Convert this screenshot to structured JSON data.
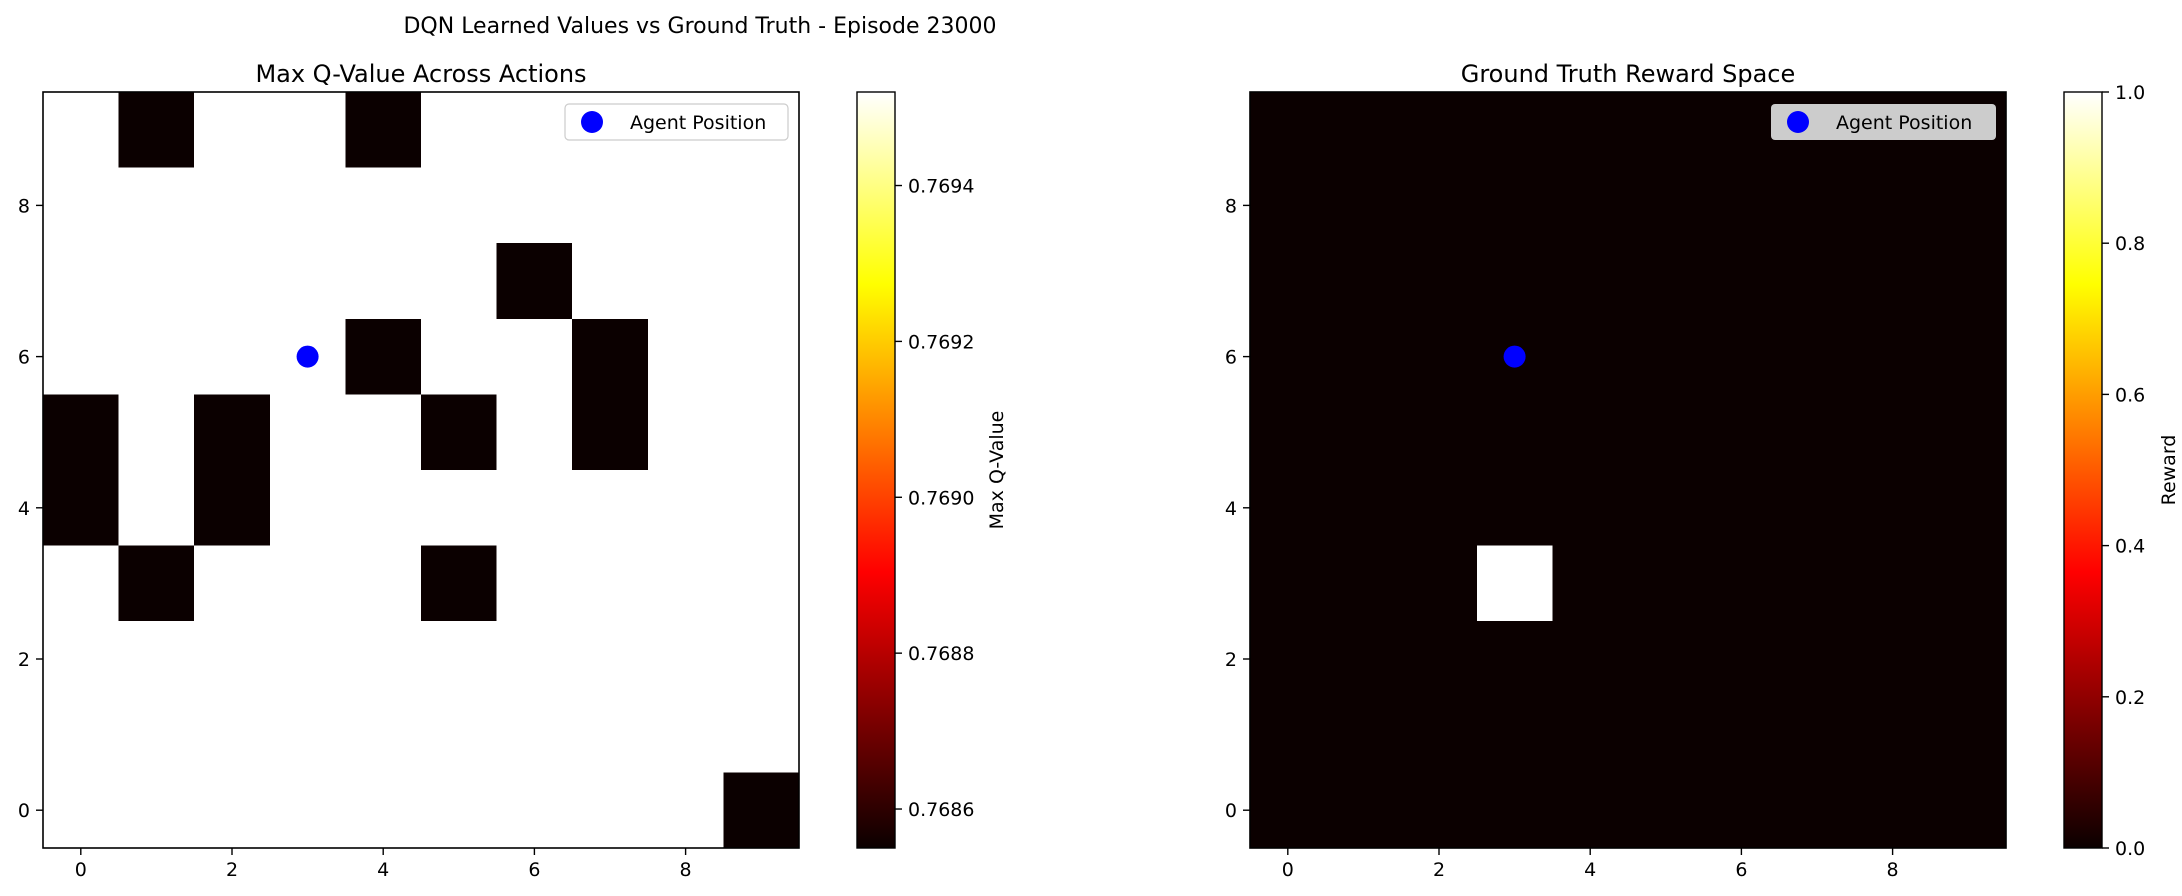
{
  "figure": {
    "suptitle": "DQN Learned Values vs Ground Truth - Episode 23000"
  },
  "chart_data": [
    {
      "type": "heatmap",
      "title": "Max Q-Value Across Actions",
      "colormap": "hot",
      "grid": false,
      "x_ticks": [
        0,
        2,
        4,
        6,
        8
      ],
      "y_ticks": [
        0,
        2,
        4,
        6,
        8
      ],
      "xlim": [
        -0.5,
        9.5
      ],
      "ylim": [
        9.5,
        -0.5
      ],
      "colorbar": {
        "label": "Max Q-Value",
        "range": [
          0.76855,
          0.76952
        ],
        "ticks": [
          0.7686,
          0.7688,
          0.769,
          0.7692,
          0.7694
        ],
        "tick_labels": [
          "0.7686",
          "0.7688",
          "0.7690",
          "0.7692",
          "0.7694"
        ]
      },
      "grid_values": [
        [
          1,
          0,
          1,
          1,
          0,
          1,
          1,
          1,
          1,
          1
        ],
        [
          1,
          1,
          1,
          1,
          1,
          1,
          1,
          1,
          1,
          1
        ],
        [
          1,
          1,
          1,
          1,
          1,
          1,
          0,
          1,
          1,
          1
        ],
        [
          1,
          1,
          1,
          1,
          0,
          1,
          1,
          0,
          1,
          1
        ],
        [
          0,
          1,
          0,
          1,
          1,
          0,
          1,
          0,
          1,
          1
        ],
        [
          0,
          1,
          0,
          1,
          1,
          1,
          1,
          1,
          1,
          1
        ],
        [
          1,
          0,
          1,
          1,
          1,
          0,
          1,
          1,
          1,
          1
        ],
        [
          1,
          1,
          1,
          1,
          1,
          1,
          1,
          1,
          1,
          1
        ],
        [
          1,
          1,
          1,
          1,
          1,
          1,
          1,
          1,
          1,
          1
        ],
        [
          1,
          1,
          1,
          1,
          1,
          1,
          1,
          1,
          1,
          0
        ]
      ],
      "grid_values_note_legend": "1 = 0.76952 (max), 0 = 0.76855 (min)",
      "agent": {
        "name": "Agent Position",
        "x": 3,
        "y": 6,
        "color": "#0000ff"
      },
      "legend_position": "top-right"
    },
    {
      "type": "heatmap",
      "title": "Ground Truth Reward Space",
      "colormap": "hot",
      "grid": false,
      "x_ticks": [
        0,
        2,
        4,
        6,
        8
      ],
      "y_ticks": [
        0,
        2,
        4,
        6,
        8
      ],
      "xlim": [
        -0.5,
        9.5
      ],
      "ylim": [
        9.5,
        -0.5
      ],
      "colorbar": {
        "label": "Reward",
        "range": [
          0,
          1
        ],
        "ticks": [
          0,
          0.2,
          0.4,
          0.6,
          0.8,
          1.0
        ],
        "tick_labels": [
          "0.0",
          "0.2",
          "0.4",
          "0.6",
          "0.8",
          "1.0"
        ]
      },
      "grid_values": [
        [
          0,
          0,
          0,
          0,
          0,
          0,
          0,
          0,
          0,
          0
        ],
        [
          0,
          0,
          0,
          0,
          0,
          0,
          0,
          0,
          0,
          0
        ],
        [
          0,
          0,
          0,
          0,
          0,
          0,
          0,
          0,
          0,
          0
        ],
        [
          0,
          0,
          0,
          0,
          0,
          0,
          0,
          0,
          0,
          0
        ],
        [
          0,
          0,
          0,
          0,
          0,
          0,
          0,
          0,
          0,
          0
        ],
        [
          0,
          0,
          0,
          0,
          0,
          0,
          0,
          0,
          0,
          0
        ],
        [
          0,
          0,
          0,
          1,
          0,
          0,
          0,
          0,
          0,
          0
        ],
        [
          0,
          0,
          0,
          0,
          0,
          0,
          0,
          0,
          0,
          0
        ],
        [
          0,
          0,
          0,
          0,
          0,
          0,
          0,
          0,
          0,
          0
        ],
        [
          0,
          0,
          0,
          0,
          0,
          0,
          0,
          0,
          0,
          0
        ]
      ],
      "agent": {
        "name": "Agent Position",
        "x": 3,
        "y": 6,
        "color": "#0000ff"
      },
      "legend_position": "top-right"
    }
  ],
  "colors": {
    "low": "#0b0000",
    "high": "#ffffff",
    "agent": "#0000ff",
    "legend_bg_panel2": "#cccccc"
  }
}
